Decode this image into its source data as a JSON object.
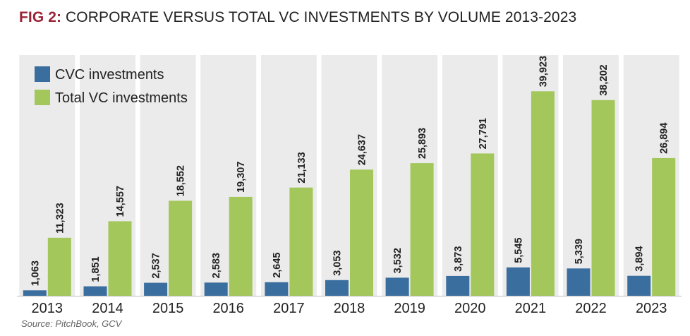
{
  "figure": {
    "label": "FIG 2:",
    "title": "CORPORATE VERSUS TOTAL VC INVESTMENTS BY VOLUME 2013-2023",
    "source": "Source: PitchBook, GCV"
  },
  "colors": {
    "cvc": "#3a6e9f",
    "total": "#a3c75a",
    "column_bg": "#ebebeb",
    "title_accent": "#9b2335"
  },
  "chart_data": {
    "type": "bar",
    "title": "CORPORATE VERSUS TOTAL VC INVESTMENTS BY VOLUME 2013-2023",
    "xlabel": "",
    "ylabel": "",
    "ylim": [
      0,
      47000
    ],
    "grid": false,
    "legend_position": "top-left",
    "categories": [
      "2013",
      "2014",
      "2015",
      "2016",
      "2017",
      "2018",
      "2019",
      "2020",
      "2021",
      "2022",
      "2023"
    ],
    "series": [
      {
        "name": "CVC investments",
        "values": [
          1063,
          1851,
          2537,
          2583,
          2645,
          3053,
          3532,
          3873,
          5545,
          5339,
          3894
        ],
        "labels": [
          "1,063",
          "1,851",
          "2,537",
          "2,583",
          "2,645",
          "3,053",
          "3,532",
          "3,873",
          "5,545",
          "5,339",
          "3,894"
        ]
      },
      {
        "name": "Total VC investments",
        "values": [
          11323,
          14557,
          18552,
          19307,
          21133,
          24637,
          25893,
          27791,
          39923,
          38202,
          26894
        ],
        "labels": [
          "11,323",
          "14,557",
          "18,552",
          "19,307",
          "21,133",
          "24,637",
          "25,893",
          "27,791",
          "39,923",
          "38,202",
          "26,894"
        ]
      }
    ]
  }
}
